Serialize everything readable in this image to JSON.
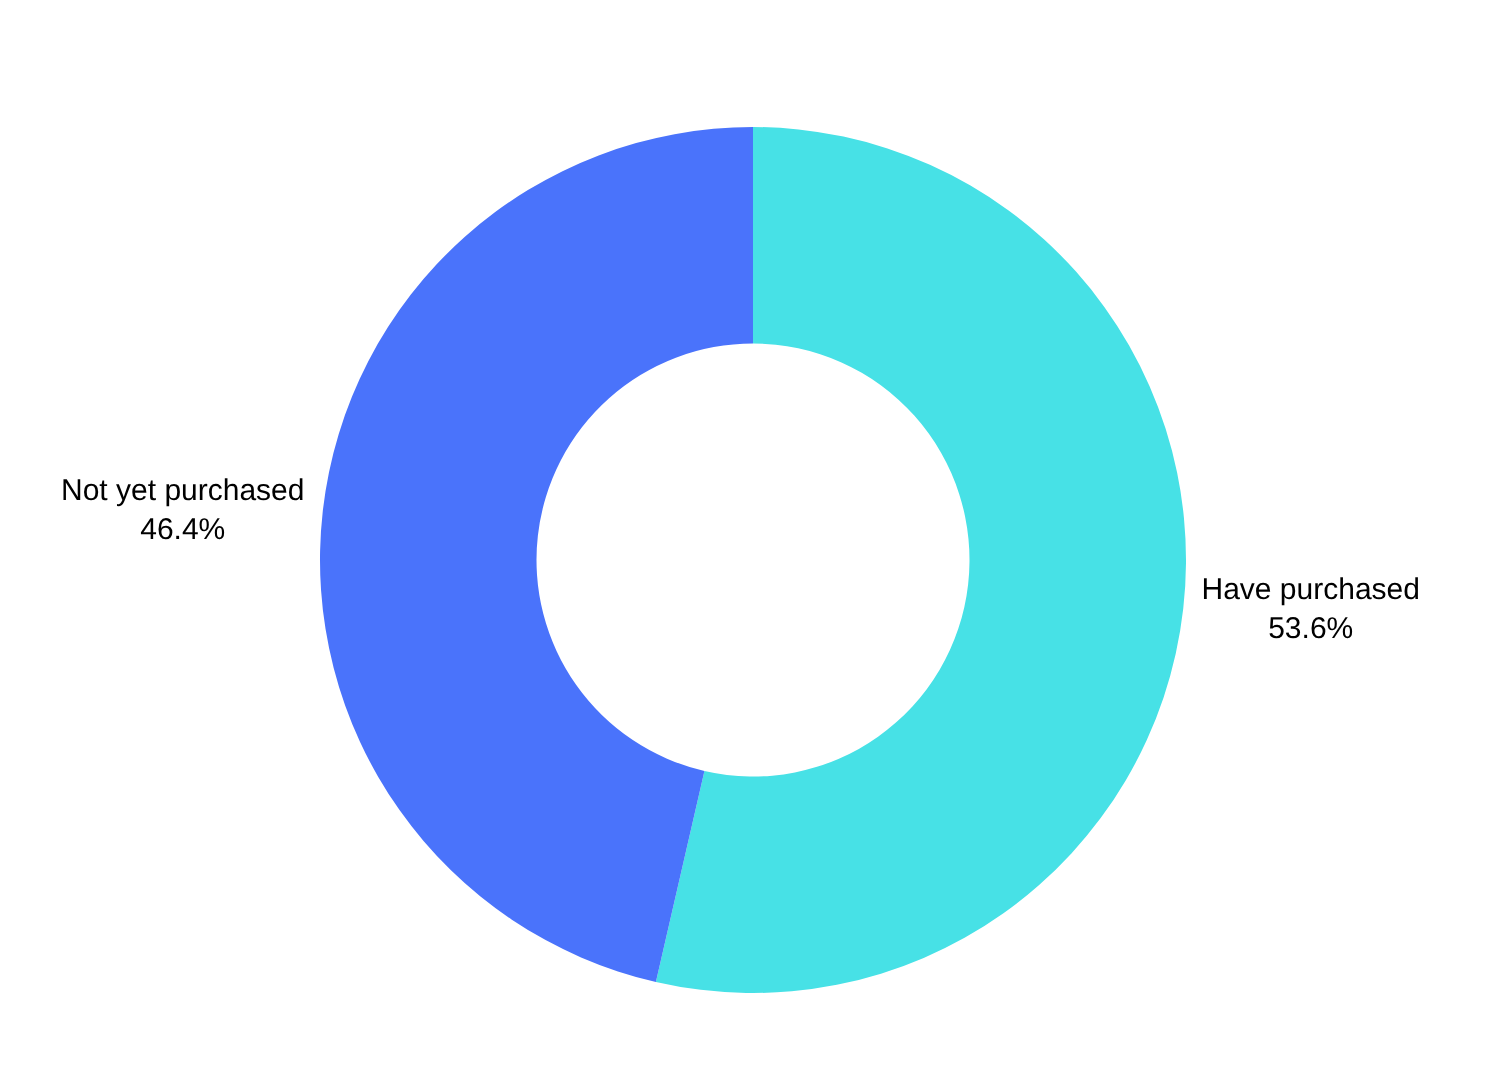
{
  "chart_data": {
    "type": "donut",
    "categories": [
      "Have purchased",
      "Not yet purchased"
    ],
    "values": [
      53.6,
      46.4
    ],
    "value_labels": [
      "53.6%",
      "46.4%"
    ],
    "colors": [
      "#47e1e6",
      "#4a73fb"
    ],
    "legend": false
  }
}
